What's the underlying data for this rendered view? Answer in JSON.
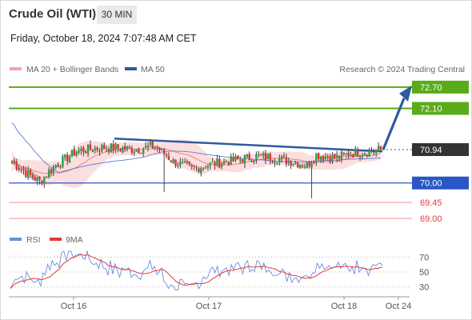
{
  "header": {
    "title": "Crude Oil (WTI)",
    "timeframe": "30 MIN",
    "datetime": "Friday, October 18, 2024 7:07:48 AM CET"
  },
  "legend": {
    "ma20_label": "MA 20 + Bollinger Bands",
    "ma50_label": "MA 50",
    "source": "Research © 2024 Trading Central",
    "rsi_label": "RSI",
    "ma9_label": "9MA"
  },
  "colors": {
    "up": "#2f9e44",
    "down": "#e03131",
    "bollinger": "#f9d3d3",
    "ma20": "#f08080",
    "ma50": "#5d7ad6",
    "trendline": "#2f5aa0",
    "resistance": "#5aab1a",
    "support": "#2a56c6",
    "support_dim": "#f4a5a5",
    "last_price": "#333333",
    "rsi": "#6b8de3",
    "rsi_ma": "#e53935"
  },
  "chart_data": [
    {
      "type": "candlestick",
      "instrument": "Crude Oil (WTI)",
      "timeframe": "30 MIN",
      "x_labels": [
        "Oct 16",
        "Oct 17",
        "Oct 18",
        "Oct 24"
      ],
      "ylim": [
        68.8,
        72.9
      ],
      "last_price": 70.94,
      "levels": [
        {
          "value": 72.7,
          "type": "resistance",
          "label": "72.70"
        },
        {
          "value": 72.1,
          "type": "resistance",
          "label": "72.10"
        },
        {
          "value": 70.94,
          "type": "last",
          "label": "70.94"
        },
        {
          "value": 70.0,
          "type": "pivot",
          "label": "70.00"
        },
        {
          "value": 69.45,
          "type": "support",
          "label": "69.45"
        },
        {
          "value": 69.0,
          "type": "support",
          "label": "69.00"
        }
      ],
      "trendline": {
        "start": 71.25,
        "end": 70.89
      },
      "forecast": {
        "from": 70.94,
        "to": 72.7
      },
      "indicators": [
        "MA 20 + Bollinger Bands",
        "MA 50"
      ]
    },
    {
      "type": "line",
      "series": [
        {
          "name": "RSI"
        },
        {
          "name": "9MA"
        }
      ],
      "y_ticks": [
        70,
        50,
        30
      ],
      "ylim": [
        20,
        80
      ]
    }
  ]
}
